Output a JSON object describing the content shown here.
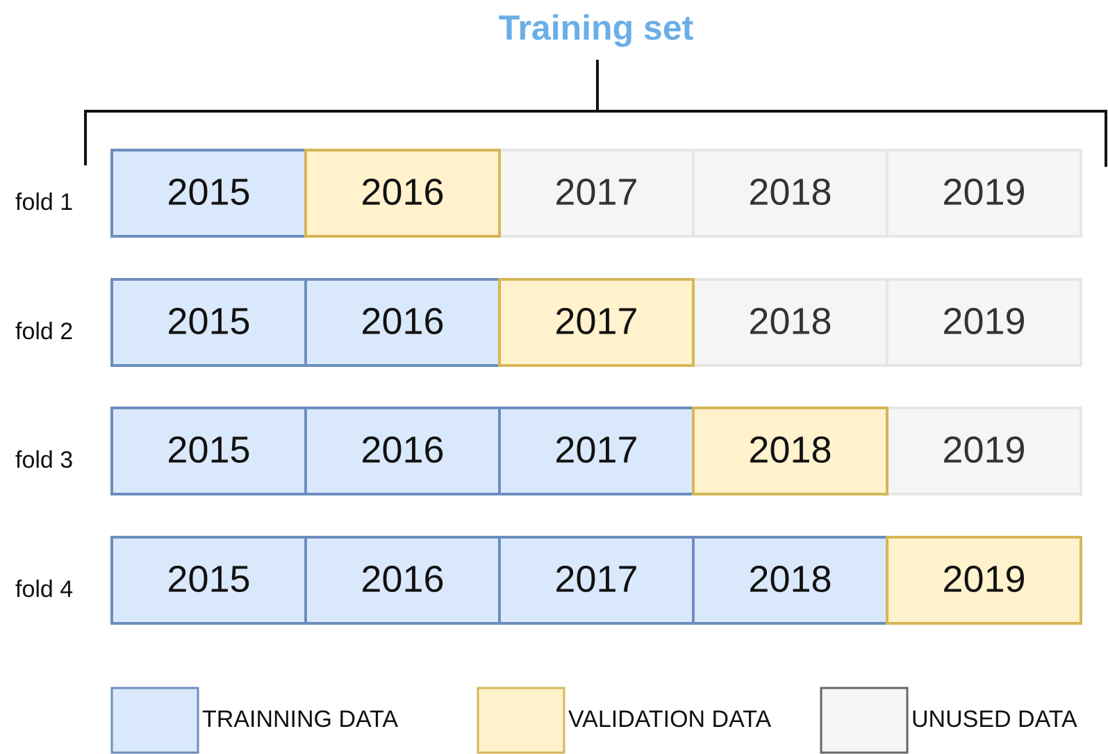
{
  "title": "Training set",
  "folds": [
    {
      "label": "fold 1",
      "cells": [
        {
          "text": "2015",
          "kind": "training"
        },
        {
          "text": "2016",
          "kind": "validation"
        },
        {
          "text": "2017",
          "kind": "unused"
        },
        {
          "text": "2018",
          "kind": "unused"
        },
        {
          "text": "2019",
          "kind": "unused"
        }
      ]
    },
    {
      "label": "fold 2",
      "cells": [
        {
          "text": "2015",
          "kind": "training"
        },
        {
          "text": "2016",
          "kind": "training"
        },
        {
          "text": "2017",
          "kind": "validation"
        },
        {
          "text": "2018",
          "kind": "unused"
        },
        {
          "text": "2019",
          "kind": "unused"
        }
      ]
    },
    {
      "label": "fold 3",
      "cells": [
        {
          "text": "2015",
          "kind": "training"
        },
        {
          "text": "2016",
          "kind": "training"
        },
        {
          "text": "2017",
          "kind": "training"
        },
        {
          "text": "2018",
          "kind": "validation"
        },
        {
          "text": "2019",
          "kind": "unused"
        }
      ]
    },
    {
      "label": "fold 4",
      "cells": [
        {
          "text": "2015",
          "kind": "training"
        },
        {
          "text": "2016",
          "kind": "training"
        },
        {
          "text": "2017",
          "kind": "training"
        },
        {
          "text": "2018",
          "kind": "training"
        },
        {
          "text": "2019",
          "kind": "validation"
        }
      ]
    }
  ],
  "legend": [
    {
      "label": "TRAINNING DATA",
      "kind": "training"
    },
    {
      "label": "VALIDATION DATA",
      "kind": "validation"
    },
    {
      "label": "UNUSED DATA",
      "kind": "unused"
    }
  ]
}
